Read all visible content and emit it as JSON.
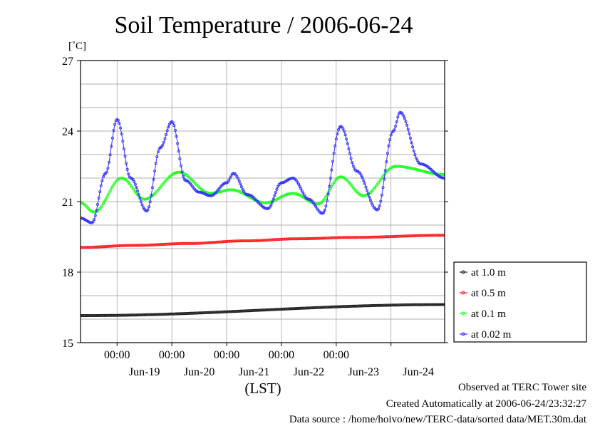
{
  "chart_data": {
    "type": "line",
    "title": "Soil Temperature / 2006-06-24",
    "ylabel": "[˚C]",
    "xlabel": "(LST)",
    "ylim": [
      15,
      27
    ],
    "yticks": [
      15,
      18,
      21,
      24,
      27
    ],
    "x_range_days": [
      "2006-06-18 08:00",
      "2006-06-24 23:30"
    ],
    "x_tick_labels": [
      "00:00",
      "00:00",
      "00:00",
      "00:00",
      "00:00"
    ],
    "x_date_labels": [
      "Jun-19",
      "Jun-20",
      "Jun-21",
      "Jun-22",
      "Jun-23",
      "Jun-24"
    ],
    "grid": true,
    "legend_position": "right",
    "series": [
      {
        "name": "at 1.0 m",
        "color": "#202020",
        "points": [
          [
            "2006-06-18 08:00",
            16.15
          ],
          [
            "2006-06-24 23:30",
            16.62
          ]
        ]
      },
      {
        "name": "at 0.5 m",
        "color": "#ff2020",
        "points": [
          [
            "2006-06-18 08:00",
            19.05
          ],
          [
            "2006-06-19 08:00",
            19.14
          ],
          [
            "2006-06-20 08:00",
            19.22
          ],
          [
            "2006-06-21 08:00",
            19.33
          ],
          [
            "2006-06-22 08:00",
            19.42
          ],
          [
            "2006-06-23 08:00",
            19.48
          ],
          [
            "2006-06-24 23:30",
            19.57
          ]
        ]
      },
      {
        "name": "at 0.1 m",
        "color": "#20ff20",
        "points": [
          [
            "2006-06-18 08:00",
            20.95
          ],
          [
            "2006-06-18 14:00",
            20.55
          ],
          [
            "2006-06-19 02:00",
            22.0
          ],
          [
            "2006-06-19 12:00",
            21.1
          ],
          [
            "2006-06-20 03:00",
            22.25
          ],
          [
            "2006-06-20 17:00",
            21.35
          ],
          [
            "2006-06-21 02:00",
            21.5
          ],
          [
            "2006-06-21 17:00",
            20.95
          ],
          [
            "2006-06-22 05:00",
            21.35
          ],
          [
            "2006-06-22 16:00",
            20.9
          ],
          [
            "2006-06-23 02:00",
            22.05
          ],
          [
            "2006-06-23 12:00",
            21.25
          ],
          [
            "2006-06-24 02:00",
            22.5
          ],
          [
            "2006-06-24 23:30",
            22.15
          ]
        ]
      },
      {
        "name": "at 0.02 m",
        "color": "#3030ff",
        "points": [
          [
            "2006-06-18 08:00",
            20.3
          ],
          [
            "2006-06-18 13:00",
            20.1
          ],
          [
            "2006-06-18 19:00",
            22.2
          ],
          [
            "2006-06-19 00:00",
            24.5
          ],
          [
            "2006-06-19 06:00",
            22.0
          ],
          [
            "2006-06-19 13:00",
            20.6
          ],
          [
            "2006-06-19 19:00",
            23.3
          ],
          [
            "2006-06-20 00:00",
            24.4
          ],
          [
            "2006-06-20 06:00",
            21.9
          ],
          [
            "2006-06-20 12:00",
            21.4
          ],
          [
            "2006-06-20 17:00",
            21.25
          ],
          [
            "2006-06-21 00:00",
            21.8
          ],
          [
            "2006-06-21 03:00",
            22.2
          ],
          [
            "2006-06-21 09:00",
            21.3
          ],
          [
            "2006-06-21 18:00",
            20.7
          ],
          [
            "2006-06-22 00:00",
            21.8
          ],
          [
            "2006-06-22 05:00",
            22.0
          ],
          [
            "2006-06-22 12:00",
            21.1
          ],
          [
            "2006-06-22 18:00",
            20.5
          ],
          [
            "2006-06-23 02:00",
            24.2
          ],
          [
            "2006-06-23 09:00",
            22.3
          ],
          [
            "2006-06-23 18:00",
            20.65
          ],
          [
            "2006-06-24 01:00",
            24.0
          ],
          [
            "2006-06-24 04:00",
            24.8
          ],
          [
            "2006-06-24 13:00",
            22.6
          ],
          [
            "2006-06-24 23:30",
            22.0
          ]
        ]
      }
    ]
  },
  "footer": {
    "site": "Observed at TERC Tower site",
    "created": "Created Automatically at 2006-06-24/23:32:27",
    "source": "Data source : /home/hoivo/new/TERC-data/sorted  data/MET.30m.dat"
  }
}
